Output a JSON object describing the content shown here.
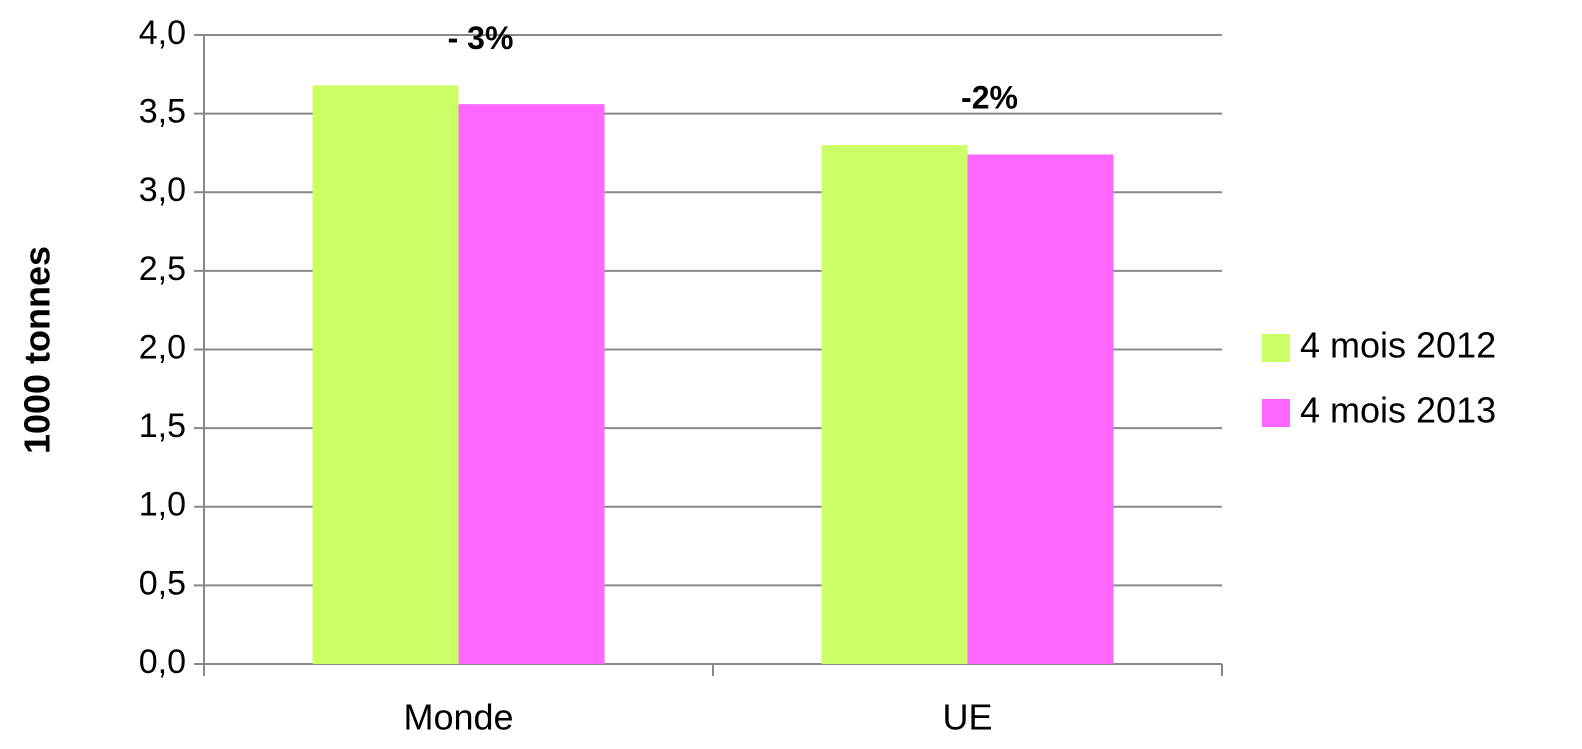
{
  "chart_data": {
    "type": "bar",
    "y_label": "1000 tonnes",
    "categories": [
      "Monde",
      "UE"
    ],
    "series": [
      {
        "name": "4 mois 2012",
        "color": "#ccff66",
        "values": [
          3.68,
          3.3
        ]
      },
      {
        "name": "4 mois 2013",
        "color": "#ff66ff",
        "values": [
          3.56,
          3.24
        ]
      }
    ],
    "annotations": [
      "- 3%",
      "-2%"
    ],
    "ylim": [
      0,
      4
    ],
    "yticks": [
      {
        "value": 0,
        "label": "0,0"
      },
      {
        "value": 0.5,
        "label": "0,5"
      },
      {
        "value": 1,
        "label": "1,0"
      },
      {
        "value": 1.5,
        "label": "1,5"
      },
      {
        "value": 2,
        "label": "2,0"
      },
      {
        "value": 2.5,
        "label": "2,5"
      },
      {
        "value": 3,
        "label": "3,0"
      },
      {
        "value": 3.5,
        "label": "3,5"
      },
      {
        "value": 4,
        "label": "4,0"
      }
    ],
    "grid": true,
    "legend": "right"
  }
}
